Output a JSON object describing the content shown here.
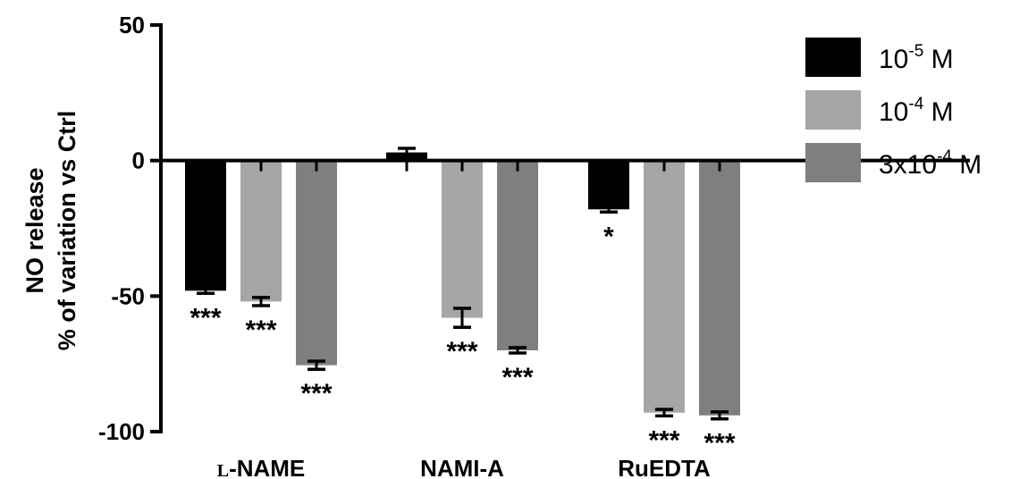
{
  "chart_data": {
    "type": "bar",
    "categories": [
      "L-NAME",
      "NAMI-A",
      "RuEDTA"
    ],
    "category_display": [
      {
        "prefix": "L",
        "rest": "-NAME"
      },
      {
        "prefix": "",
        "rest": "NAMI-A"
      },
      {
        "prefix": "",
        "rest": "RuEDTA"
      }
    ],
    "series": [
      {
        "name": "10-5 M",
        "color": "#000000",
        "values": [
          -48,
          3,
          -18
        ],
        "errors": [
          1,
          1.5,
          1
        ],
        "significance": [
          "***",
          "",
          "*"
        ]
      },
      {
        "name": "10-4 M",
        "color": "#a6a6a8",
        "values": [
          -52,
          -58,
          -93
        ],
        "errors": [
          1.5,
          3.5,
          1.2
        ],
        "significance": [
          "***",
          "***",
          "***"
        ]
      },
      {
        "name": "3x10-4 M",
        "color": "#7f7f7f",
        "values": [
          -75.5,
          -70,
          -94
        ],
        "errors": [
          1.5,
          1,
          1.3
        ],
        "significance": [
          "***",
          "***",
          "***"
        ]
      }
    ],
    "legend": [
      {
        "base": "10",
        "sup": "-5",
        "unit": " M"
      },
      {
        "base": "10",
        "sup": "-4",
        "unit": " M"
      },
      {
        "base": "3x10",
        "sup": "-4",
        "unit": " M"
      }
    ],
    "ylabel_line1": "NO release",
    "ylabel_line2": "% of variation vs Ctrl",
    "xlabel": "",
    "ylim": [
      -100,
      50
    ],
    "yticks": [
      50,
      0,
      -50,
      -100
    ],
    "ytick_labels": [
      "50",
      "0",
      "-50",
      "-100"
    ],
    "legend_position": "top-right",
    "grid": false
  }
}
